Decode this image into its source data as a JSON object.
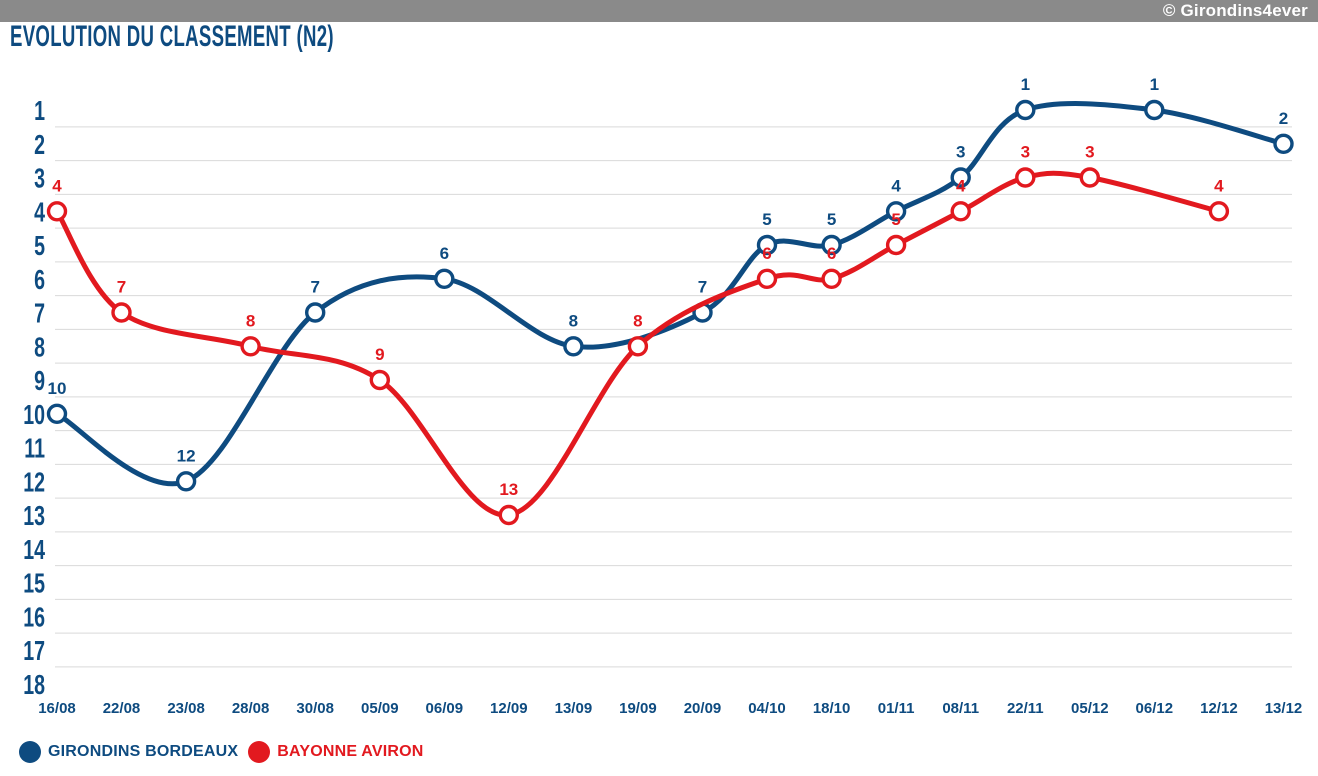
{
  "header": {
    "bar_text": "© Girondins4ever",
    "title": "EVOLUTION DU CLASSEMENT (N2)"
  },
  "colors": {
    "blue": "#0e4b80",
    "red": "#e2191f",
    "grid": "#d9d9d9",
    "bar_bg": "#8a8a8a",
    "bar_text": "#ffffff",
    "marker_fill": "#ffffff"
  },
  "chart_data": {
    "type": "line",
    "title": "EVOLUTION DU CLASSEMENT (N2)",
    "x_categories": [
      "16/08",
      "22/08",
      "23/08",
      "28/08",
      "30/08",
      "05/09",
      "06/09",
      "12/09",
      "13/09",
      "19/09",
      "20/09",
      "04/10",
      "18/10",
      "01/11",
      "08/11",
      "22/11",
      "05/12",
      "06/12",
      "12/12",
      "13/12"
    ],
    "y_axis": {
      "min": 1,
      "max": 18,
      "inverted": true,
      "ticks": [
        1,
        2,
        3,
        4,
        5,
        6,
        7,
        8,
        9,
        10,
        11,
        12,
        13,
        14,
        15,
        16,
        17,
        18
      ]
    },
    "grid": "horizontal-lines-between-ranks",
    "line_style": "smooth",
    "markers": "open-circle",
    "data_labels": "rank-above-point",
    "legend_position": "bottom-left",
    "series": [
      {
        "name": "GIRONDINS BORDEAUX",
        "color": "#0e4b80",
        "points": [
          [
            "16/08",
            10
          ],
          [
            "23/08",
            12
          ],
          [
            "30/08",
            7
          ],
          [
            "06/09",
            6
          ],
          [
            "13/09",
            8
          ],
          [
            "20/09",
            7
          ],
          [
            "04/10",
            5
          ],
          [
            "18/10",
            5
          ],
          [
            "01/11",
            4
          ],
          [
            "08/11",
            3
          ],
          [
            "22/11",
            1
          ],
          [
            "06/12",
            1
          ],
          [
            "13/12",
            2
          ]
        ]
      },
      {
        "name": "BAYONNE AVIRON",
        "color": "#e2191f",
        "points": [
          [
            "16/08",
            4
          ],
          [
            "22/08",
            7
          ],
          [
            "28/08",
            8
          ],
          [
            "05/09",
            9
          ],
          [
            "12/09",
            13
          ],
          [
            "19/09",
            8
          ],
          [
            "04/10",
            6
          ],
          [
            "18/10",
            6
          ],
          [
            "01/11",
            5
          ],
          [
            "08/11",
            4
          ],
          [
            "22/11",
            3
          ],
          [
            "05/12",
            3
          ],
          [
            "12/12",
            4
          ]
        ]
      }
    ]
  },
  "legend": {
    "items": [
      {
        "label": "GIRONDINS BORDEAUX",
        "color": "#0e4b80"
      },
      {
        "label": "BAYONNE AVIRON",
        "color": "#e2191f"
      }
    ]
  }
}
